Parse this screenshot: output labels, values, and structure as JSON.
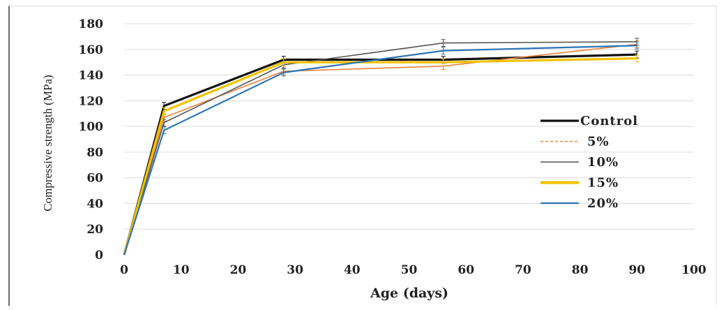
{
  "chart_data": {
    "type": "line",
    "title": "",
    "xlabel": "Age (days)",
    "ylabel": "Compressive strength (MPa)",
    "xlim": [
      0,
      100
    ],
    "ylim": [
      0,
      180
    ],
    "xticks": [
      0,
      10,
      20,
      30,
      40,
      50,
      60,
      70,
      80,
      90,
      100
    ],
    "yticks": [
      0,
      20,
      40,
      60,
      80,
      100,
      120,
      140,
      160,
      180
    ],
    "grid": true,
    "legend_position": "right",
    "x": [
      0,
      7,
      28,
      56,
      90
    ],
    "series": [
      {
        "name": "Control",
        "color": "#111111",
        "values": [
          0,
          116,
          152,
          152,
          156
        ]
      },
      {
        "name": "5%",
        "color": "#e8833a",
        "values": [
          0,
          107,
          143,
          147,
          164
        ]
      },
      {
        "name": "10%",
        "color": "#555555",
        "values": [
          0,
          103,
          148,
          165,
          166
        ]
      },
      {
        "name": "15%",
        "color": "#f2c200",
        "values": [
          0,
          112,
          150,
          150,
          153
        ]
      },
      {
        "name": "20%",
        "color": "#2e75b6",
        "values": [
          0,
          97,
          142,
          159,
          163
        ]
      }
    ]
  }
}
